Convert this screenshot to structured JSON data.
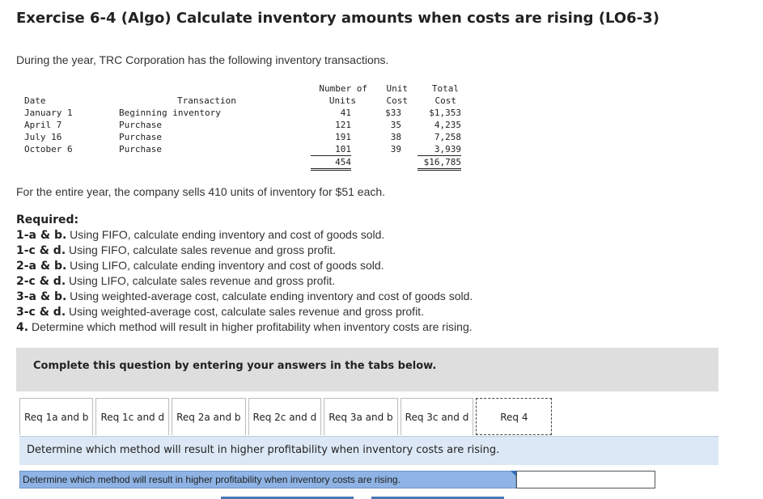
{
  "title": "Exercise 6-4 (Algo) Calculate inventory amounts when costs are rising (LO6-3)",
  "intro": "During the year, TRC Corporation has the following inventory transactions.",
  "table": {
    "headers": {
      "date": "Date",
      "transaction": "Transaction",
      "units_1": "Number of",
      "units_2": "Units",
      "unit_cost_1": "Unit",
      "unit_cost_2": "Cost",
      "total_cost_1": "Total",
      "total_cost_2": "Cost"
    },
    "rows": [
      {
        "date": "January 1",
        "transaction": "Beginning inventory",
        "units": "41",
        "unit_cost": "$33",
        "total_cost": "$1,353"
      },
      {
        "date": "April 7",
        "transaction": "Purchase",
        "units": "121",
        "unit_cost": "35",
        "total_cost": "4,235"
      },
      {
        "date": "July 16",
        "transaction": "Purchase",
        "units": "191",
        "unit_cost": "38",
        "total_cost": "7,258"
      },
      {
        "date": "October 6",
        "transaction": "Purchase",
        "units": "101",
        "unit_cost": "39",
        "total_cost": "3,939"
      }
    ],
    "totals": {
      "units": "454",
      "total_cost": "$16,785"
    }
  },
  "sales_sentence": "For the entire year, the company sells 410 units of inventory for $51 each.",
  "required": {
    "heading": "Required:",
    "items": [
      {
        "label": "1-a & b.",
        "text": " Using FIFO, calculate ending inventory and cost of goods sold."
      },
      {
        "label": "1-c & d.",
        "text": " Using FIFO, calculate sales revenue and gross profit."
      },
      {
        "label": "2-a & b.",
        "text": " Using LIFO, calculate ending inventory and cost of goods sold."
      },
      {
        "label": "2-c & d.",
        "text": " Using LIFO, calculate sales revenue and gross profit."
      },
      {
        "label": "3-a & b.",
        "text": " Using weighted-average cost, calculate ending inventory and cost of goods sold."
      },
      {
        "label": "3-c & d.",
        "text": " Using weighted-average cost, calculate sales revenue and gross profit."
      },
      {
        "label": "4.",
        "text": " Determine which method will result in higher profitability when inventory costs are rising."
      }
    ]
  },
  "complete_banner": "Complete this question by entering your answers in the tabs below.",
  "tabs": [
    "Req 1a and b",
    "Req 1c and d",
    "Req 2a and b",
    "Req 2c and d",
    "Req 3a and b",
    "Req 3c and d",
    "Req 4"
  ],
  "active_tab": "Req 4",
  "prompt": "Determine which method will result in higher profitability when inventory costs are rising.",
  "answer": {
    "label": "Determine which method will result in higher profitability when inventory costs are rising.",
    "value": ""
  }
}
